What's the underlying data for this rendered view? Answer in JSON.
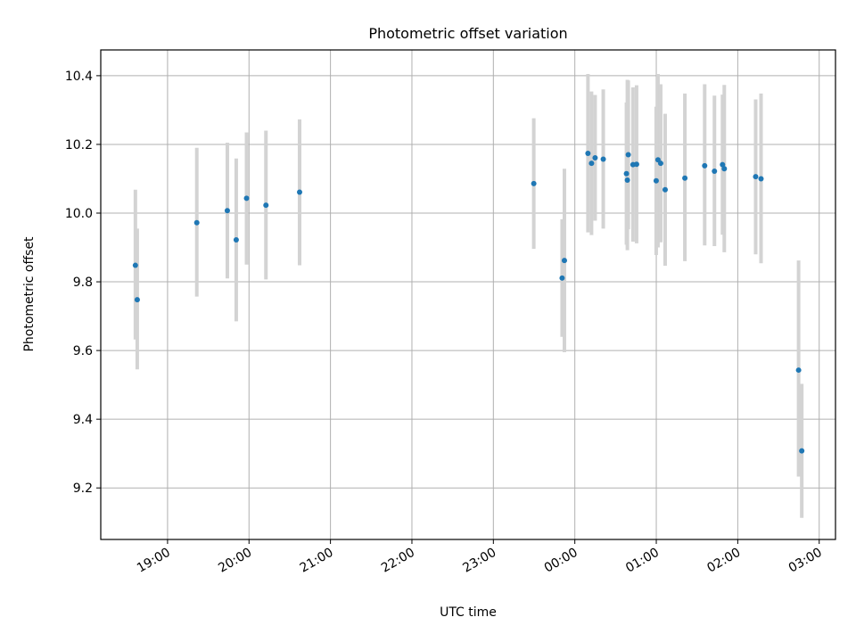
{
  "chart_data": {
    "type": "scatter",
    "title": "Photometric offset variation",
    "xlabel": "UTC time",
    "ylabel": "Photometric offset",
    "x_unit": "hours relative to 00:00 UTC",
    "xlim": [
      -5.82,
      3.2
    ],
    "ylim": [
      9.05,
      10.475
    ],
    "grid": true,
    "x_ticks": [
      {
        "value": -5,
        "label": "19:00"
      },
      {
        "value": -4,
        "label": "20:00"
      },
      {
        "value": -3,
        "label": "21:00"
      },
      {
        "value": -2,
        "label": "22:00"
      },
      {
        "value": -1,
        "label": "23:00"
      },
      {
        "value": 0,
        "label": "00:00"
      },
      {
        "value": 1,
        "label": "01:00"
      },
      {
        "value": 2,
        "label": "02:00"
      },
      {
        "value": 3,
        "label": "03:00"
      }
    ],
    "y_ticks": [
      {
        "value": 9.2,
        "label": "9.2"
      },
      {
        "value": 9.4,
        "label": "9.4"
      },
      {
        "value": 9.6,
        "label": "9.6"
      },
      {
        "value": 9.8,
        "label": "9.8"
      },
      {
        "value": 10.0,
        "label": "10.0"
      },
      {
        "value": 10.2,
        "label": "10.2"
      },
      {
        "value": 10.4,
        "label": "10.4"
      }
    ],
    "marker_color": "#1f77b4",
    "errorbar_color": "#d3d3d3",
    "points": [
      {
        "x": -5.395,
        "y": 9.848,
        "ylo": 9.632,
        "yhi": 10.068
      },
      {
        "x": -5.372,
        "y": 9.748,
        "ylo": 9.545,
        "yhi": 9.955
      },
      {
        "x": -4.641,
        "y": 9.972,
        "ylo": 9.757,
        "yhi": 10.19
      },
      {
        "x": -4.266,
        "y": 10.007,
        "ylo": 9.81,
        "yhi": 10.205
      },
      {
        "x": -4.157,
        "y": 9.922,
        "ylo": 9.685,
        "yhi": 10.159
      },
      {
        "x": -4.03,
        "y": 10.043,
        "ylo": 9.85,
        "yhi": 10.235
      },
      {
        "x": -3.792,
        "y": 10.023,
        "ylo": 9.807,
        "yhi": 10.24
      },
      {
        "x": -3.379,
        "y": 10.061,
        "ylo": 9.848,
        "yhi": 10.273
      },
      {
        "x": -0.504,
        "y": 10.086,
        "ylo": 9.896,
        "yhi": 10.276
      },
      {
        "x": -0.156,
        "y": 9.811,
        "ylo": 9.64,
        "yhi": 9.982
      },
      {
        "x": -0.128,
        "y": 9.862,
        "ylo": 9.595,
        "yhi": 10.129
      },
      {
        "x": 0.161,
        "y": 10.174,
        "ylo": 9.944,
        "yhi": 10.405
      },
      {
        "x": 0.205,
        "y": 10.145,
        "ylo": 9.936,
        "yhi": 10.354
      },
      {
        "x": 0.249,
        "y": 10.161,
        "ylo": 9.978,
        "yhi": 10.344
      },
      {
        "x": 0.349,
        "y": 10.157,
        "ylo": 9.955,
        "yhi": 10.36
      },
      {
        "x": 0.634,
        "y": 10.115,
        "ylo": 9.908,
        "yhi": 10.322
      },
      {
        "x": 0.645,
        "y": 10.096,
        "ylo": 9.892,
        "yhi": 10.388
      },
      {
        "x": 0.656,
        "y": 10.17,
        "ylo": 9.953,
        "yhi": 10.386
      },
      {
        "x": 0.714,
        "y": 10.141,
        "ylo": 9.917,
        "yhi": 10.366
      },
      {
        "x": 0.758,
        "y": 10.142,
        "ylo": 9.912,
        "yhi": 10.372
      },
      {
        "x": 0.999,
        "y": 10.094,
        "ylo": 9.878,
        "yhi": 10.31
      },
      {
        "x": 1.021,
        "y": 10.155,
        "ylo": 9.9,
        "yhi": 10.405
      },
      {
        "x": 1.054,
        "y": 10.145,
        "ylo": 9.915,
        "yhi": 10.375
      },
      {
        "x": 1.109,
        "y": 10.068,
        "ylo": 9.847,
        "yhi": 10.289
      },
      {
        "x": 1.351,
        "y": 10.102,
        "ylo": 9.86,
        "yhi": 10.348
      },
      {
        "x": 1.594,
        "y": 10.138,
        "ylo": 9.906,
        "yhi": 10.375
      },
      {
        "x": 1.714,
        "y": 10.122,
        "ylo": 9.904,
        "yhi": 10.342
      },
      {
        "x": 1.813,
        "y": 10.141,
        "ylo": 9.937,
        "yhi": 10.345
      },
      {
        "x": 1.835,
        "y": 10.129,
        "ylo": 9.886,
        "yhi": 10.373
      },
      {
        "x": 2.22,
        "y": 10.106,
        "ylo": 9.88,
        "yhi": 10.331
      },
      {
        "x": 2.286,
        "y": 10.1,
        "ylo": 9.854,
        "yhi": 10.348
      },
      {
        "x": 2.747,
        "y": 9.543,
        "ylo": 9.233,
        "yhi": 9.862
      },
      {
        "x": 2.786,
        "y": 9.308,
        "ylo": 9.113,
        "yhi": 9.503
      }
    ]
  }
}
